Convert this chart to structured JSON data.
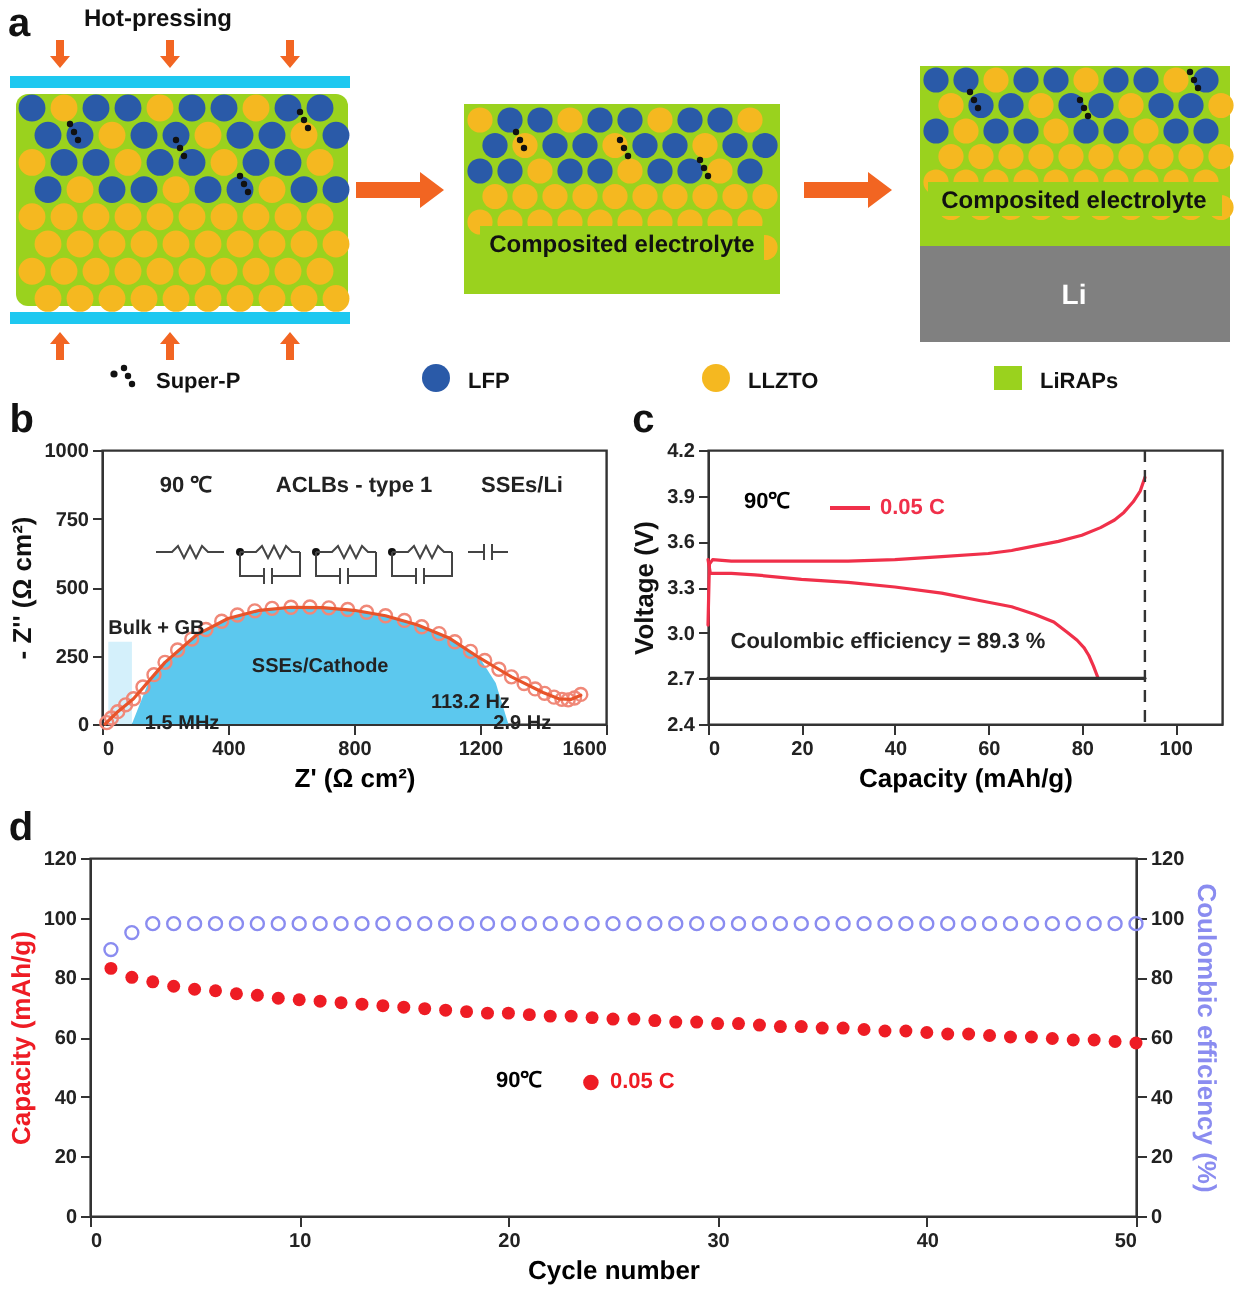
{
  "chart_data": [
    {
      "type": "other",
      "title": "a",
      "annotations": [
        "Hot-pressing",
        "Composited electrolyte",
        "Composited electrolyte",
        "Li",
        "Super-P",
        "LFP",
        "LLZTO",
        "LiRAPs"
      ]
    },
    {
      "type": "scatter",
      "title": "b",
      "xlabel": "Z' (Ω cm²)",
      "ylabel": "- Z'' (Ω cm²)",
      "xlim": [
        0,
        1600
      ],
      "ylim": [
        0,
        1000
      ],
      "xticks": [
        0,
        400,
        800,
        1200,
        1600
      ],
      "yticks": [
        0,
        250,
        500,
        750,
        1000
      ],
      "series": [
        {
          "type": "area",
          "name": "Bulk + GB",
          "color": "#d4f0fb",
          "x": [
            20,
            95
          ],
          "values": [
            300,
            300
          ]
        },
        {
          "type": "area",
          "name": "SSEs/Cathode",
          "color": "#5cc8ee",
          "x": [
            95,
            150,
            200,
            300,
            400,
            500,
            600,
            700,
            800,
            900,
            1000,
            1100,
            1200,
            1250,
            1290
          ],
          "values": [
            0,
            160,
            225,
            325,
            385,
            415,
            426,
            425,
            415,
            395,
            362,
            315,
            240,
            150,
            0
          ]
        },
        {
          "type": "scatter",
          "marker": "circle",
          "color": "#f08878",
          "x": [
            15,
            30,
            50,
            75,
            100,
            130,
            165,
            200,
            240,
            285,
            330,
            380,
            430,
            485,
            540,
            600,
            660,
            720,
            780,
            840,
            900,
            960,
            1015,
            1070,
            1120,
            1170,
            1215,
            1260,
            1300,
            1340,
            1375,
            1405,
            1435,
            1460,
            1480,
            1500,
            1520
          ],
          "values": [
            5,
            22,
            45,
            70,
            92,
            135,
            180,
            225,
            270,
            310,
            345,
            375,
            398,
            413,
            422,
            426,
            427,
            424,
            418,
            408,
            395,
            378,
            355,
            330,
            300,
            265,
            232,
            200,
            172,
            148,
            128,
            112,
            98,
            90,
            88,
            95,
            108
          ]
        },
        {
          "type": "line",
          "color": "#e8542a",
          "x": [
            10,
            50,
            100,
            200,
            300,
            400,
            500,
            600,
            700,
            800,
            900,
            1000,
            1100,
            1200,
            1300,
            1400,
            1450,
            1490,
            1520
          ],
          "values": [
            0,
            45,
            92,
            225,
            325,
            385,
            415,
            426,
            425,
            415,
            395,
            362,
            315,
            240,
            172,
            115,
            92,
            90,
            105
          ]
        }
      ],
      "annotations": [
        "90 ℃",
        "ACLBs - type 1",
        "SSEs/Li",
        {
          "text": "1.5 MHz",
          "x": 98,
          "y": 91
        },
        {
          "text": "113.2 Hz",
          "x": 1333,
          "y": 168
        },
        {
          "text": "2.9 Hz",
          "x": 1464,
          "y": 90
        }
      ]
    },
    {
      "type": "line",
      "title": "c",
      "xlabel": "Capacity (mAh/g)",
      "ylabel": "Voltage (V)",
      "xlim": [
        0,
        110
      ],
      "ylim": [
        2.4,
        4.2
      ],
      "xticks": [
        0,
        20,
        40,
        60,
        80,
        100
      ],
      "yticks": [
        2.4,
        2.7,
        {
          "value": 3,
          "label": "3.0"
        },
        3.3,
        3.6,
        3.9,
        4.2
      ],
      "legend": "top left",
      "legend_title": "90℃",
      "line_style": "solid",
      "series": [
        {
          "name": "0.05 C",
          "color": "#f0304a",
          "x": [
            0,
            0.3,
            1,
            5,
            10,
            20,
            30,
            40,
            50,
            60,
            65,
            70,
            75,
            80,
            84,
            87,
            89,
            91,
            92.5,
            93.5
          ],
          "values": [
            3.05,
            3.45,
            3.48,
            3.47,
            3.47,
            3.47,
            3.47,
            3.48,
            3.5,
            3.52,
            3.54,
            3.57,
            3.6,
            3.64,
            3.69,
            3.74,
            3.79,
            3.86,
            3.93,
            4.02
          ]
        },
        {
          "color": "#f0304a",
          "x": [
            0,
            0.5,
            5,
            10,
            20,
            30,
            40,
            50,
            60,
            65,
            70,
            74,
            77,
            79,
            80.5,
            81.5,
            82.5,
            83,
            83.5
          ],
          "values": [
            3.48,
            3.39,
            3.39,
            3.38,
            3.35,
            3.33,
            3.3,
            3.26,
            3.2,
            3.17,
            3.12,
            3.07,
            3.0,
            2.95,
            2.9,
            2.85,
            2.78,
            2.74,
            2.7
          ]
        },
        {
          "color": "#333333",
          "x": [
            0,
            93.5
          ],
          "values": [
            2.7,
            2.7
          ]
        }
      ],
      "ref_lines": [
        {
          "axis": "x",
          "value": 93.5,
          "color": "#333333",
          "line_style": "dashed"
        }
      ],
      "annotations": [
        "Coulombic efficiency = 89.3 %"
      ]
    },
    {
      "type": "scatter",
      "title": "d",
      "xlabel": "Cycle number",
      "ylabel": "Capacity (mAh/g)",
      "y2label": "Coulombic efficiency (%)",
      "xlim": [
        0,
        50
      ],
      "ylim": [
        0,
        120
      ],
      "y2lim": [
        0,
        120
      ],
      "xticks": [
        0,
        10,
        20,
        30,
        40,
        50
      ],
      "yticks": [
        0,
        20,
        40,
        60,
        80,
        100,
        120
      ],
      "y2ticks": [
        0,
        20,
        40,
        60,
        80,
        100,
        120
      ],
      "legend": "left",
      "legend_title": "90℃",
      "x": [
        1,
        2,
        3,
        4,
        5,
        6,
        7,
        8,
        9,
        10,
        11,
        12,
        13,
        14,
        15,
        16,
        17,
        18,
        19,
        20,
        21,
        22,
        23,
        24,
        25,
        26,
        27,
        28,
        29,
        30,
        31,
        32,
        33,
        34,
        35,
        36,
        37,
        38,
        39,
        40,
        41,
        42,
        43,
        44,
        45,
        46,
        47,
        48,
        49,
        50
      ],
      "series": [
        {
          "name": "0.05 C",
          "marker": "circle",
          "color": "#ee1c24",
          "values": [
            83,
            80,
            78.5,
            77,
            76,
            75.5,
            74.5,
            74,
            73,
            72.5,
            72,
            71.5,
            71,
            70.5,
            70,
            69.5,
            69,
            68.5,
            68,
            68,
            67.5,
            67,
            67,
            66.5,
            66,
            66,
            65.5,
            65,
            65,
            64.5,
            64.5,
            64,
            63.5,
            63.5,
            63,
            63,
            62.5,
            62,
            62,
            61.5,
            61,
            61,
            60.5,
            60,
            60,
            59.5,
            59,
            59,
            58.5,
            58
          ]
        },
        {
          "color": "#8a8cf0",
          "marker": "circle",
          "axis": "y2",
          "values": [
            89.3,
            95,
            98,
            98,
            98,
            98,
            98,
            98,
            98,
            98,
            98,
            98,
            98,
            98,
            98,
            98,
            98,
            98,
            98,
            98,
            98,
            98,
            98,
            98,
            98,
            98,
            98,
            98,
            98,
            98,
            98,
            98,
            98,
            98,
            98,
            98,
            98,
            98,
            98,
            98,
            98,
            98,
            98,
            98,
            98,
            98,
            98,
            98,
            98,
            98
          ]
        }
      ]
    }
  ]
}
